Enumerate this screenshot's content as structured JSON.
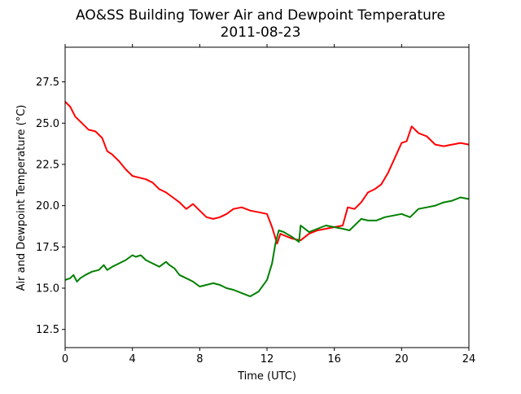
{
  "chart_data": {
    "type": "line",
    "title": "AO&SS Building Tower Air and Dewpoint Temperature",
    "subtitle": "2011-08-23",
    "xlabel": "Time (UTC)",
    "ylabel": "Air and Dewpoint Temperature (°C)",
    "xlim": [
      0,
      24
    ],
    "ylim": [
      11.4,
      29.6
    ],
    "x_ticks": [
      0,
      4,
      8,
      12,
      16,
      20,
      24
    ],
    "x_tick_labels": [
      "0",
      "4",
      "8",
      "12",
      "16",
      "20",
      "24"
    ],
    "y_ticks": [
      12.5,
      15.0,
      17.5,
      20.0,
      22.5,
      25.0,
      27.5
    ],
    "y_tick_labels": [
      "12.5",
      "15.0",
      "17.5",
      "20.0",
      "22.5",
      "25.0",
      "27.5"
    ],
    "grid": false,
    "legend": "none",
    "series": [
      {
        "color": "#ff0000",
        "x": [
          0,
          0.3,
          0.6,
          1.0,
          1.4,
          1.8,
          2.2,
          2.5,
          2.8,
          3.2,
          3.6,
          4.0,
          4.4,
          4.8,
          5.2,
          5.6,
          6.0,
          6.4,
          6.8,
          7.2,
          7.6,
          8.0,
          8.4,
          8.8,
          9.2,
          9.6,
          10.0,
          10.5,
          11.0,
          11.5,
          12.0,
          12.3,
          12.6,
          12.8,
          13.0,
          13.5,
          14.0,
          14.5,
          15.0,
          15.5,
          16.0,
          16.5,
          16.8,
          17.2,
          17.6,
          18.0,
          18.4,
          18.8,
          19.2,
          19.6,
          20.0,
          20.3,
          20.6,
          21.0,
          21.5,
          22.0,
          22.5,
          23.0,
          23.5,
          24.0
        ],
        "values": [
          26.3,
          26.0,
          25.4,
          25.0,
          24.6,
          24.5,
          24.1,
          23.3,
          23.1,
          22.7,
          22.2,
          21.8,
          21.7,
          21.6,
          21.4,
          21.0,
          20.8,
          20.5,
          20.2,
          19.8,
          20.1,
          19.7,
          19.3,
          19.2,
          19.3,
          19.5,
          19.8,
          19.9,
          19.7,
          19.6,
          19.5,
          18.7,
          17.7,
          18.3,
          18.2,
          18.0,
          17.9,
          18.3,
          18.5,
          18.6,
          18.7,
          18.8,
          19.9,
          19.8,
          20.2,
          20.8,
          21.0,
          21.3,
          22.0,
          22.9,
          23.8,
          23.9,
          24.8,
          24.4,
          24.2,
          23.7,
          23.6,
          23.7,
          23.8,
          23.7
        ]
      },
      {
        "color": "#008000",
        "x": [
          0,
          0.3,
          0.5,
          0.7,
          0.9,
          1.2,
          1.6,
          2.0,
          2.3,
          2.5,
          2.8,
          3.2,
          3.6,
          4.0,
          4.2,
          4.5,
          4.8,
          5.2,
          5.6,
          6.0,
          6.2,
          6.5,
          6.8,
          7.2,
          7.6,
          8.0,
          8.4,
          8.8,
          9.2,
          9.6,
          10.0,
          10.5,
          11.0,
          11.5,
          12.0,
          12.3,
          12.5,
          12.7,
          13.0,
          13.5,
          13.9,
          14.0,
          14.5,
          15.0,
          15.5,
          16.0,
          16.5,
          16.9,
          17.2,
          17.6,
          18.0,
          18.5,
          19.0,
          19.5,
          20.0,
          20.5,
          21.0,
          21.5,
          22.0,
          22.5,
          23.0,
          23.5,
          24.0
        ],
        "values": [
          15.5,
          15.6,
          15.8,
          15.4,
          15.6,
          15.8,
          16.0,
          16.1,
          16.4,
          16.1,
          16.3,
          16.5,
          16.7,
          17.0,
          16.9,
          17.0,
          16.7,
          16.5,
          16.3,
          16.6,
          16.4,
          16.2,
          15.8,
          15.6,
          15.4,
          15.1,
          15.2,
          15.3,
          15.2,
          15.0,
          14.9,
          14.7,
          14.5,
          14.8,
          15.5,
          16.5,
          17.7,
          18.5,
          18.4,
          18.1,
          17.8,
          18.8,
          18.4,
          18.6,
          18.8,
          18.7,
          18.6,
          18.5,
          18.8,
          19.2,
          19.1,
          19.1,
          19.3,
          19.4,
          19.5,
          19.3,
          19.8,
          19.9,
          20.0,
          20.2,
          20.3,
          20.5,
          20.4
        ]
      }
    ]
  }
}
